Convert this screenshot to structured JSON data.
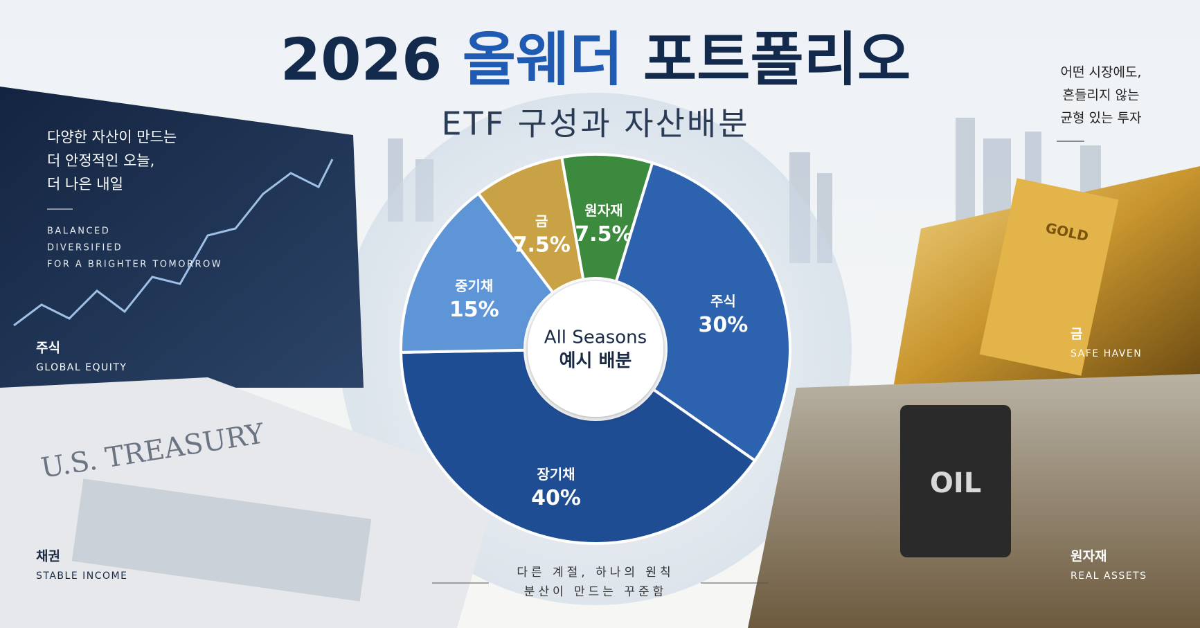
{
  "chart_data": {
    "type": "donut",
    "title_parts": [
      "2026",
      "올웨더",
      "포트폴리오"
    ],
    "subtitle": "ETF 구성과 자산배분",
    "center_label": [
      "All Seasons",
      "예시 배분"
    ],
    "categories": [
      "원자재",
      "주식",
      "장기채",
      "중기채",
      "금"
    ],
    "values": [
      7.5,
      30,
      40,
      15,
      7.5
    ],
    "value_labels": [
      "7.5%",
      "30%",
      "40%",
      "15%",
      "7.5%"
    ],
    "colors": [
      "#3b8a3e",
      "#2d62ae",
      "#1f4d94",
      "#5e95d6",
      "#c9a246"
    ]
  },
  "left_panel": {
    "lines": [
      "다양한 자산이 만드는",
      "더 안정적인 오늘,",
      "더 나은 내일"
    ],
    "tags": [
      "BALANCED",
      "DIVERSIFIED",
      "FOR A BRIGHTER TOMORROW"
    ]
  },
  "right_panel": {
    "lines": [
      "어떤 시장에도,",
      "흔들리지 않는",
      "균형 있는 투자"
    ]
  },
  "panels": [
    {
      "title": "주식",
      "subtitle": "GLOBAL EQUITY"
    },
    {
      "title": "채권",
      "subtitle": "STABLE INCOME"
    },
    {
      "title": "금",
      "subtitle": "SAFE HAVEN"
    },
    {
      "title": "원자재",
      "subtitle": "REAL ASSETS"
    }
  ],
  "photo_labels": [
    "U.S. TREASURY",
    "GOLD",
    "OIL"
  ],
  "footer": {
    "lines": [
      "다른 계절, 하나의 원칙",
      "분산이 만드는 꾸준함"
    ]
  }
}
